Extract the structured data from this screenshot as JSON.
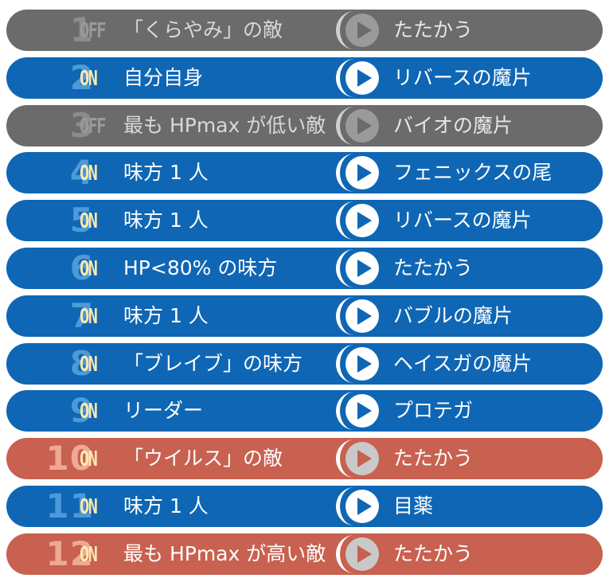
{
  "colors": {
    "on_row": "#0f66b4",
    "off_row": "#6b6b6b",
    "red_row": "#c8614f"
  },
  "gambits": [
    {
      "num": "1",
      "status": "OFF",
      "condition": "「くらやみ」の敵",
      "action": "たたかう",
      "style": "off"
    },
    {
      "num": "2",
      "status": "ON",
      "condition": "自分自身",
      "action": "リバースの魔片",
      "style": "on"
    },
    {
      "num": "3",
      "status": "OFF",
      "condition": "最も HPmax が低い敵",
      "action": "バイオの魔片",
      "style": "off"
    },
    {
      "num": "4",
      "status": "ON",
      "condition": "味方 1 人",
      "action": "フェニックスの尾",
      "style": "on"
    },
    {
      "num": "5",
      "status": "ON",
      "condition": "味方 1 人",
      "action": "リバースの魔片",
      "style": "on"
    },
    {
      "num": "6",
      "status": "ON",
      "condition": "HP<80% の味方",
      "action": "たたかう",
      "style": "on"
    },
    {
      "num": "7",
      "status": "ON",
      "condition": "味方 1 人",
      "action": "バブルの魔片",
      "style": "on"
    },
    {
      "num": "8",
      "status": "ON",
      "condition": "「ブレイブ」の味方",
      "action": "ヘイスガの魔片",
      "style": "on"
    },
    {
      "num": "9",
      "status": "ON",
      "condition": "リーダー",
      "action": "プロテガ",
      "style": "on"
    },
    {
      "num": "10",
      "status": "ON",
      "condition": "「ウイルス」の敵",
      "action": "たたかう",
      "style": "red"
    },
    {
      "num": "11",
      "status": "ON",
      "condition": "味方 1 人",
      "action": "目薬",
      "style": "on"
    },
    {
      "num": "12",
      "status": "ON",
      "condition": "最も HPmax が高い敵",
      "action": "たたかう",
      "style": "red"
    }
  ]
}
